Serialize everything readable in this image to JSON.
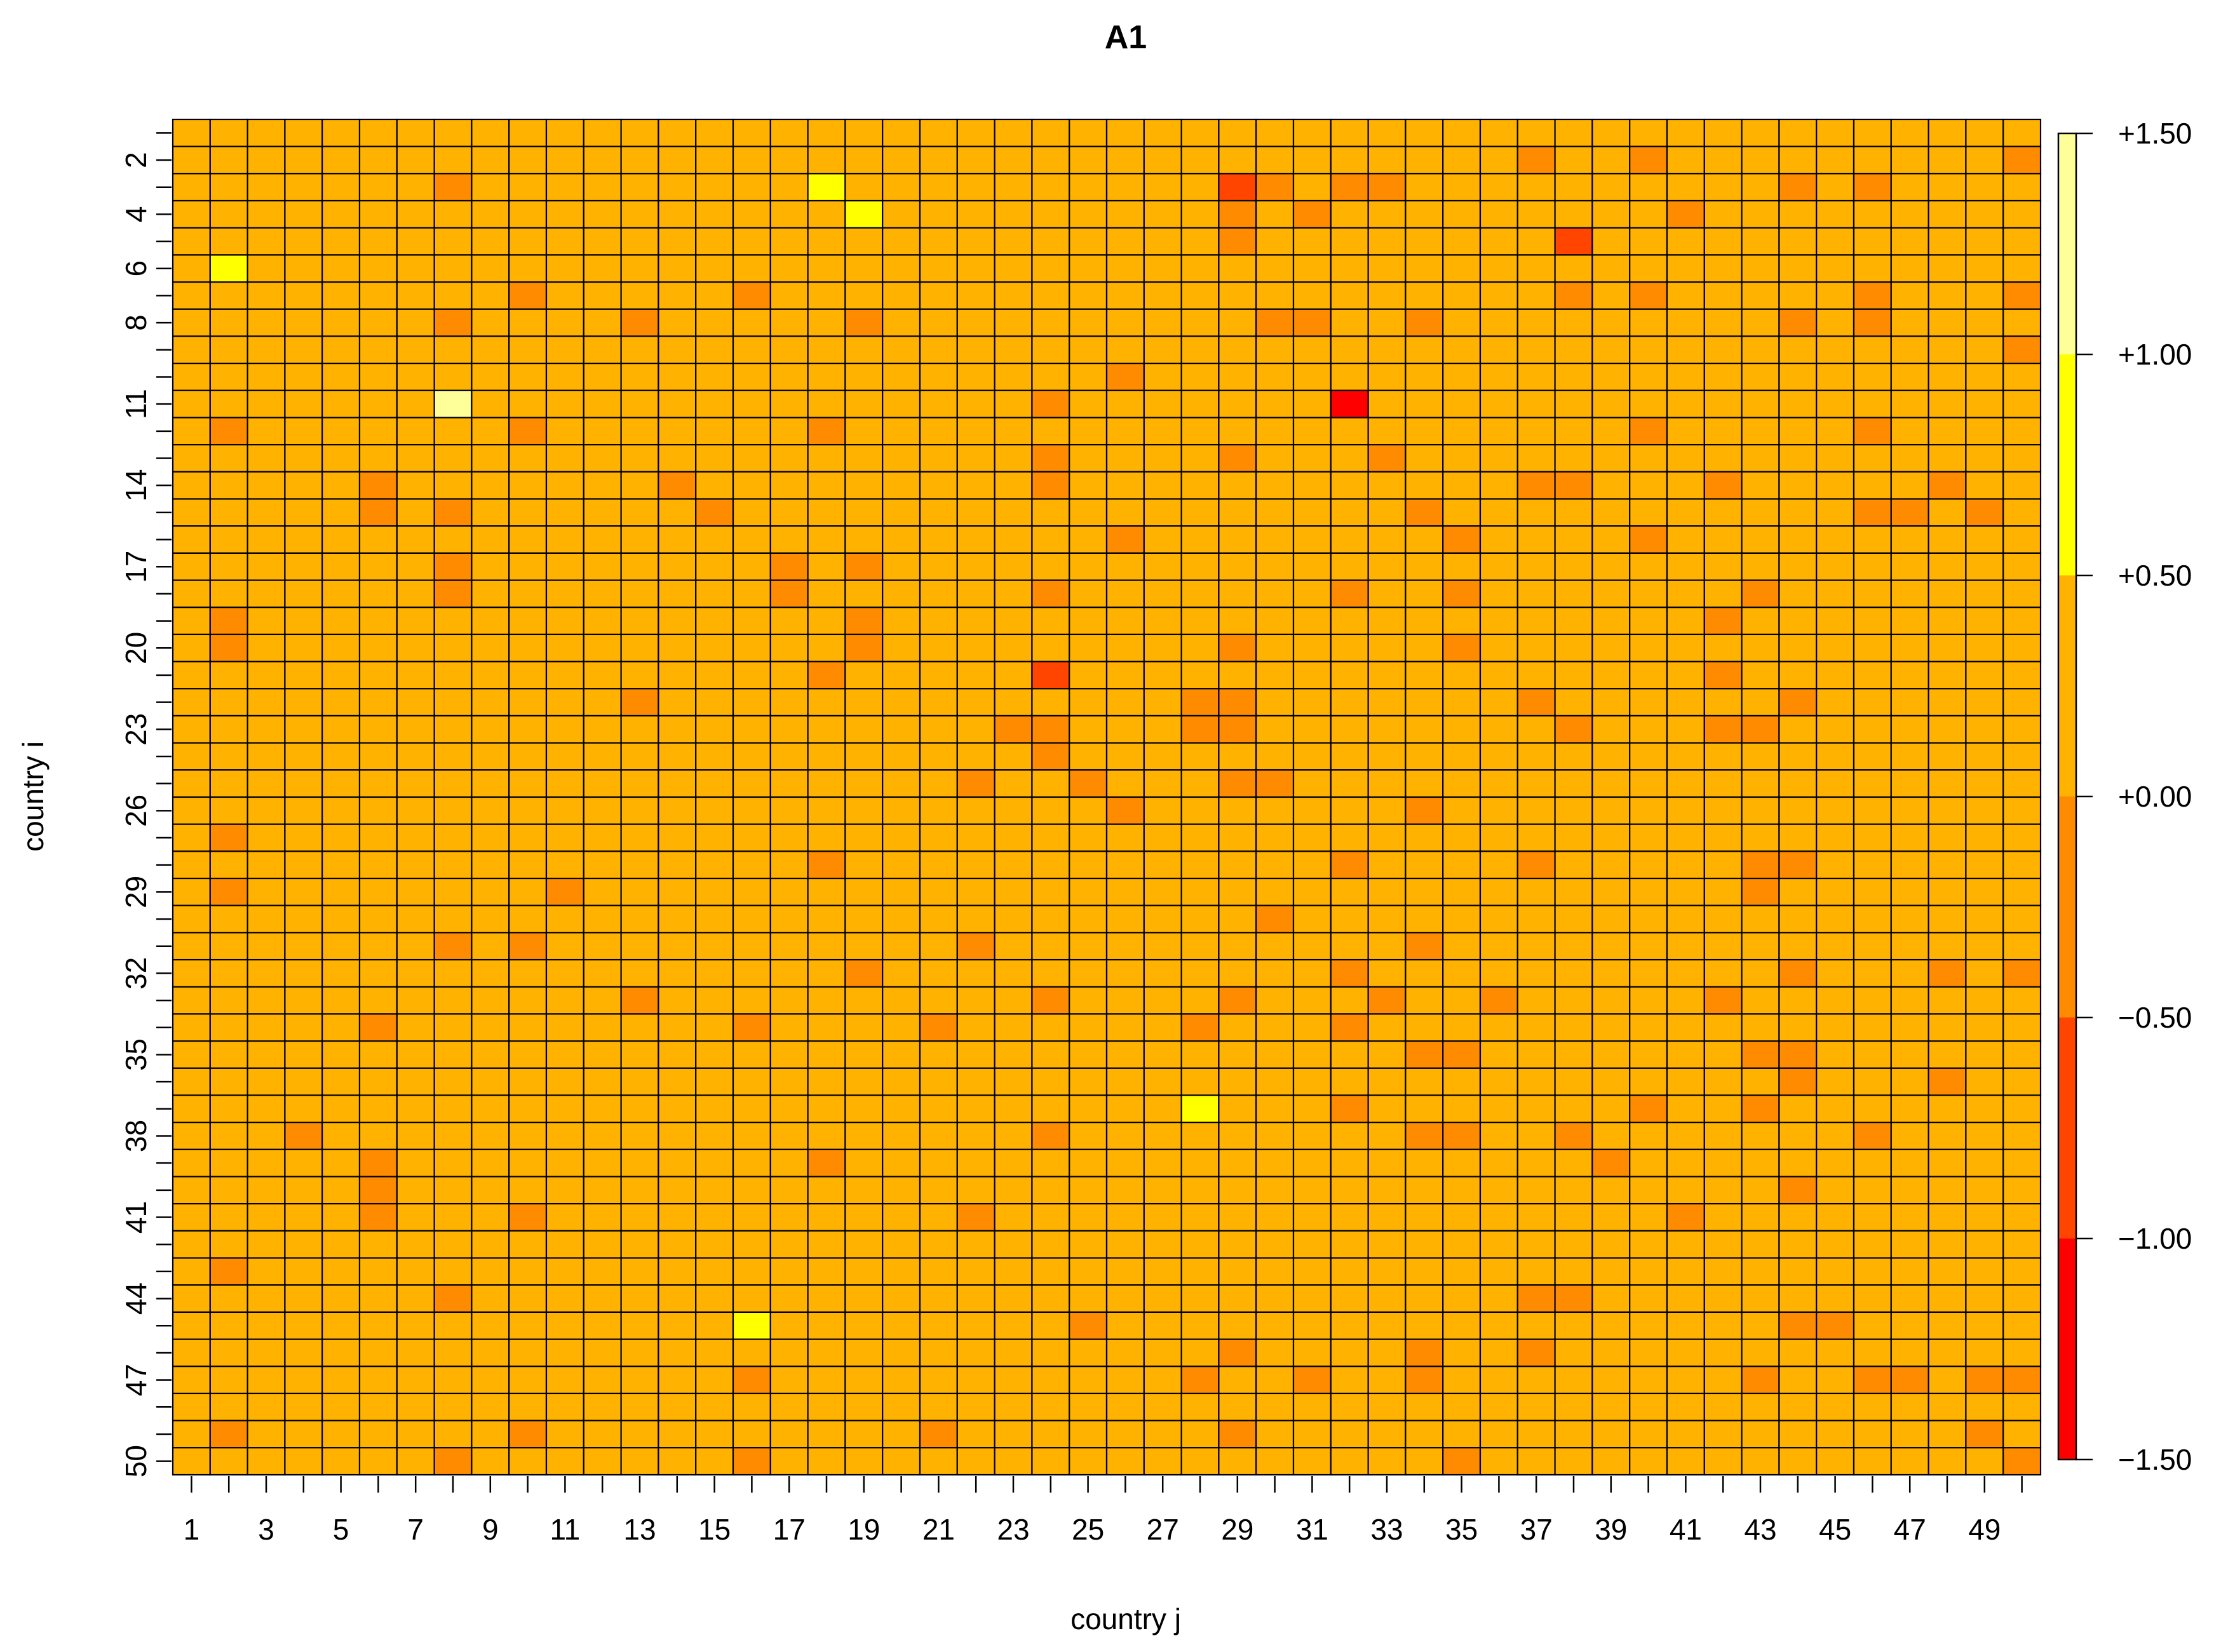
{
  "chart_data": {
    "type": "heatmap",
    "title": "A1",
    "xlabel": "country j",
    "ylabel": "country i",
    "n_cols": 50,
    "n_rows": 50,
    "x_tick_labels": [
      "1",
      "3",
      "5",
      "7",
      "9",
      "11",
      "13",
      "15",
      "17",
      "19",
      "21",
      "23",
      "25",
      "27",
      "29",
      "31",
      "33",
      "35",
      "37",
      "39",
      "41",
      "43",
      "45",
      "47",
      "49"
    ],
    "y_tick_labels": [
      "2",
      "4",
      "6",
      "8",
      "11",
      "14",
      "17",
      "20",
      "23",
      "26",
      "29",
      "32",
      "35",
      "38",
      "41",
      "44",
      "47",
      "50"
    ],
    "colorbar": {
      "range": [
        -1.5,
        1.5
      ],
      "breaks": [
        -1.5,
        -1.0,
        -0.5,
        0.0,
        0.5,
        1.0,
        1.5
      ],
      "tick_labels": [
        "−1.50",
        "−1.00",
        "−0.50",
        "+0.00",
        "+0.50",
        "+1.00",
        "+1.50"
      ],
      "colors": [
        "#FF0000",
        "#FF4500",
        "#FF8C00",
        "#FFB300",
        "#FFFF00",
        "#FFFF99"
      ]
    },
    "default_value": 0.25,
    "cells": [
      {
        "i": 2,
        "j": 37,
        "v": -0.25
      },
      {
        "i": 2,
        "j": 40,
        "v": -0.25
      },
      {
        "i": 2,
        "j": 50,
        "v": -0.25
      },
      {
        "i": 3,
        "j": 8,
        "v": -0.25
      },
      {
        "i": 3,
        "j": 18,
        "v": 0.75
      },
      {
        "i": 3,
        "j": 29,
        "v": -0.75
      },
      {
        "i": 3,
        "j": 30,
        "v": -0.25
      },
      {
        "i": 3,
        "j": 32,
        "v": -0.25
      },
      {
        "i": 3,
        "j": 33,
        "v": -0.25
      },
      {
        "i": 3,
        "j": 44,
        "v": -0.25
      },
      {
        "i": 3,
        "j": 46,
        "v": -0.25
      },
      {
        "i": 4,
        "j": 19,
        "v": 0.75
      },
      {
        "i": 4,
        "j": 29,
        "v": -0.25
      },
      {
        "i": 4,
        "j": 31,
        "v": -0.25
      },
      {
        "i": 4,
        "j": 41,
        "v": -0.25
      },
      {
        "i": 5,
        "j": 29,
        "v": -0.25
      },
      {
        "i": 5,
        "j": 38,
        "v": -0.75
      },
      {
        "i": 6,
        "j": 2,
        "v": 0.75
      },
      {
        "i": 7,
        "j": 10,
        "v": -0.25
      },
      {
        "i": 7,
        "j": 16,
        "v": -0.25
      },
      {
        "i": 7,
        "j": 38,
        "v": -0.25
      },
      {
        "i": 7,
        "j": 40,
        "v": -0.25
      },
      {
        "i": 7,
        "j": 46,
        "v": -0.25
      },
      {
        "i": 7,
        "j": 50,
        "v": -0.25
      },
      {
        "i": 8,
        "j": 8,
        "v": -0.25
      },
      {
        "i": 8,
        "j": 13,
        "v": -0.25
      },
      {
        "i": 8,
        "j": 19,
        "v": -0.25
      },
      {
        "i": 8,
        "j": 30,
        "v": -0.25
      },
      {
        "i": 8,
        "j": 31,
        "v": -0.25
      },
      {
        "i": 8,
        "j": 34,
        "v": -0.25
      },
      {
        "i": 8,
        "j": 44,
        "v": -0.25
      },
      {
        "i": 8,
        "j": 46,
        "v": -0.25
      },
      {
        "i": 9,
        "j": 50,
        "v": -0.25
      },
      {
        "i": 10,
        "j": 26,
        "v": -0.25
      },
      {
        "i": 11,
        "j": 8,
        "v": 1.25
      },
      {
        "i": 11,
        "j": 24,
        "v": -0.25
      },
      {
        "i": 11,
        "j": 32,
        "v": -1.25
      },
      {
        "i": 12,
        "j": 2,
        "v": -0.25
      },
      {
        "i": 12,
        "j": 10,
        "v": -0.25
      },
      {
        "i": 12,
        "j": 18,
        "v": -0.25
      },
      {
        "i": 12,
        "j": 40,
        "v": -0.25
      },
      {
        "i": 12,
        "j": 46,
        "v": -0.25
      },
      {
        "i": 13,
        "j": 24,
        "v": -0.25
      },
      {
        "i": 13,
        "j": 29,
        "v": -0.25
      },
      {
        "i": 13,
        "j": 33,
        "v": -0.25
      },
      {
        "i": 14,
        "j": 6,
        "v": -0.25
      },
      {
        "i": 14,
        "j": 14,
        "v": -0.25
      },
      {
        "i": 14,
        "j": 24,
        "v": -0.25
      },
      {
        "i": 14,
        "j": 37,
        "v": -0.25
      },
      {
        "i": 14,
        "j": 38,
        "v": -0.25
      },
      {
        "i": 14,
        "j": 42,
        "v": -0.25
      },
      {
        "i": 14,
        "j": 48,
        "v": -0.25
      },
      {
        "i": 15,
        "j": 6,
        "v": -0.25
      },
      {
        "i": 15,
        "j": 8,
        "v": -0.25
      },
      {
        "i": 15,
        "j": 15,
        "v": -0.25
      },
      {
        "i": 15,
        "j": 34,
        "v": -0.25
      },
      {
        "i": 15,
        "j": 46,
        "v": -0.25
      },
      {
        "i": 15,
        "j": 47,
        "v": -0.25
      },
      {
        "i": 15,
        "j": 49,
        "v": -0.25
      },
      {
        "i": 16,
        "j": 26,
        "v": -0.25
      },
      {
        "i": 16,
        "j": 35,
        "v": -0.25
      },
      {
        "i": 16,
        "j": 40,
        "v": -0.25
      },
      {
        "i": 17,
        "j": 8,
        "v": -0.25
      },
      {
        "i": 17,
        "j": 17,
        "v": -0.25
      },
      {
        "i": 17,
        "j": 19,
        "v": -0.25
      },
      {
        "i": 18,
        "j": 8,
        "v": -0.25
      },
      {
        "i": 18,
        "j": 17,
        "v": -0.25
      },
      {
        "i": 18,
        "j": 24,
        "v": -0.25
      },
      {
        "i": 18,
        "j": 32,
        "v": -0.25
      },
      {
        "i": 18,
        "j": 35,
        "v": -0.25
      },
      {
        "i": 18,
        "j": 43,
        "v": -0.25
      },
      {
        "i": 19,
        "j": 2,
        "v": -0.25
      },
      {
        "i": 19,
        "j": 19,
        "v": -0.25
      },
      {
        "i": 19,
        "j": 42,
        "v": -0.25
      },
      {
        "i": 20,
        "j": 2,
        "v": -0.25
      },
      {
        "i": 20,
        "j": 19,
        "v": -0.25
      },
      {
        "i": 20,
        "j": 29,
        "v": -0.25
      },
      {
        "i": 20,
        "j": 35,
        "v": -0.25
      },
      {
        "i": 21,
        "j": 18,
        "v": -0.25
      },
      {
        "i": 21,
        "j": 24,
        "v": -0.75
      },
      {
        "i": 21,
        "j": 42,
        "v": -0.25
      },
      {
        "i": 22,
        "j": 13,
        "v": -0.25
      },
      {
        "i": 22,
        "j": 28,
        "v": -0.25
      },
      {
        "i": 22,
        "j": 29,
        "v": -0.25
      },
      {
        "i": 22,
        "j": 37,
        "v": -0.25
      },
      {
        "i": 22,
        "j": 44,
        "v": -0.25
      },
      {
        "i": 23,
        "j": 23,
        "v": -0.25
      },
      {
        "i": 23,
        "j": 24,
        "v": -0.25
      },
      {
        "i": 23,
        "j": 28,
        "v": -0.25
      },
      {
        "i": 23,
        "j": 29,
        "v": -0.25
      },
      {
        "i": 23,
        "j": 38,
        "v": -0.25
      },
      {
        "i": 23,
        "j": 42,
        "v": -0.25
      },
      {
        "i": 23,
        "j": 43,
        "v": -0.25
      },
      {
        "i": 24,
        "j": 24,
        "v": -0.25
      },
      {
        "i": 25,
        "j": 22,
        "v": -0.25
      },
      {
        "i": 25,
        "j": 25,
        "v": -0.25
      },
      {
        "i": 25,
        "j": 29,
        "v": -0.25
      },
      {
        "i": 25,
        "j": 30,
        "v": -0.25
      },
      {
        "i": 26,
        "j": 26,
        "v": -0.25
      },
      {
        "i": 26,
        "j": 34,
        "v": -0.25
      },
      {
        "i": 27,
        "j": 2,
        "v": -0.25
      },
      {
        "i": 28,
        "j": 18,
        "v": -0.25
      },
      {
        "i": 28,
        "j": 32,
        "v": -0.25
      },
      {
        "i": 28,
        "j": 37,
        "v": -0.25
      },
      {
        "i": 28,
        "j": 43,
        "v": -0.25
      },
      {
        "i": 28,
        "j": 44,
        "v": -0.25
      },
      {
        "i": 29,
        "j": 2,
        "v": -0.25
      },
      {
        "i": 29,
        "j": 11,
        "v": -0.25
      },
      {
        "i": 29,
        "j": 43,
        "v": -0.25
      },
      {
        "i": 30,
        "j": 30,
        "v": -0.25
      },
      {
        "i": 31,
        "j": 8,
        "v": -0.25
      },
      {
        "i": 31,
        "j": 10,
        "v": -0.25
      },
      {
        "i": 31,
        "j": 22,
        "v": -0.25
      },
      {
        "i": 31,
        "j": 34,
        "v": -0.25
      },
      {
        "i": 32,
        "j": 19,
        "v": -0.25
      },
      {
        "i": 32,
        "j": 32,
        "v": -0.25
      },
      {
        "i": 32,
        "j": 44,
        "v": -0.25
      },
      {
        "i": 32,
        "j": 48,
        "v": -0.25
      },
      {
        "i": 32,
        "j": 50,
        "v": -0.25
      },
      {
        "i": 33,
        "j": 13,
        "v": -0.25
      },
      {
        "i": 33,
        "j": 24,
        "v": -0.25
      },
      {
        "i": 33,
        "j": 29,
        "v": -0.25
      },
      {
        "i": 33,
        "j": 33,
        "v": -0.25
      },
      {
        "i": 33,
        "j": 36,
        "v": -0.25
      },
      {
        "i": 33,
        "j": 42,
        "v": -0.25
      },
      {
        "i": 34,
        "j": 6,
        "v": -0.25
      },
      {
        "i": 34,
        "j": 16,
        "v": -0.25
      },
      {
        "i": 34,
        "j": 21,
        "v": -0.25
      },
      {
        "i": 34,
        "j": 28,
        "v": -0.25
      },
      {
        "i": 34,
        "j": 32,
        "v": -0.25
      },
      {
        "i": 35,
        "j": 34,
        "v": -0.25
      },
      {
        "i": 35,
        "j": 35,
        "v": -0.25
      },
      {
        "i": 35,
        "j": 43,
        "v": -0.25
      },
      {
        "i": 35,
        "j": 44,
        "v": -0.25
      },
      {
        "i": 36,
        "j": 44,
        "v": -0.25
      },
      {
        "i": 36,
        "j": 48,
        "v": -0.25
      },
      {
        "i": 37,
        "j": 28,
        "v": 0.75
      },
      {
        "i": 37,
        "j": 32,
        "v": -0.25
      },
      {
        "i": 37,
        "j": 40,
        "v": -0.25
      },
      {
        "i": 37,
        "j": 43,
        "v": -0.25
      },
      {
        "i": 38,
        "j": 4,
        "v": -0.25
      },
      {
        "i": 38,
        "j": 24,
        "v": -0.25
      },
      {
        "i": 38,
        "j": 34,
        "v": -0.25
      },
      {
        "i": 38,
        "j": 35,
        "v": -0.25
      },
      {
        "i": 38,
        "j": 38,
        "v": -0.25
      },
      {
        "i": 38,
        "j": 46,
        "v": -0.25
      },
      {
        "i": 39,
        "j": 6,
        "v": -0.25
      },
      {
        "i": 39,
        "j": 18,
        "v": -0.25
      },
      {
        "i": 39,
        "j": 39,
        "v": -0.25
      },
      {
        "i": 40,
        "j": 6,
        "v": -0.25
      },
      {
        "i": 40,
        "j": 44,
        "v": -0.25
      },
      {
        "i": 41,
        "j": 6,
        "v": -0.25
      },
      {
        "i": 41,
        "j": 10,
        "v": -0.25
      },
      {
        "i": 41,
        "j": 22,
        "v": -0.25
      },
      {
        "i": 41,
        "j": 41,
        "v": -0.25
      },
      {
        "i": 43,
        "j": 2,
        "v": -0.25
      },
      {
        "i": 44,
        "j": 8,
        "v": -0.25
      },
      {
        "i": 44,
        "j": 37,
        "v": -0.25
      },
      {
        "i": 44,
        "j": 38,
        "v": -0.25
      },
      {
        "i": 45,
        "j": 16,
        "v": 0.75
      },
      {
        "i": 45,
        "j": 25,
        "v": -0.25
      },
      {
        "i": 45,
        "j": 44,
        "v": -0.25
      },
      {
        "i": 45,
        "j": 45,
        "v": -0.25
      },
      {
        "i": 46,
        "j": 29,
        "v": -0.25
      },
      {
        "i": 46,
        "j": 34,
        "v": -0.25
      },
      {
        "i": 46,
        "j": 37,
        "v": -0.25
      },
      {
        "i": 47,
        "j": 16,
        "v": -0.25
      },
      {
        "i": 47,
        "j": 28,
        "v": -0.25
      },
      {
        "i": 47,
        "j": 31,
        "v": -0.25
      },
      {
        "i": 47,
        "j": 34,
        "v": -0.25
      },
      {
        "i": 47,
        "j": 43,
        "v": -0.25
      },
      {
        "i": 47,
        "j": 46,
        "v": -0.25
      },
      {
        "i": 47,
        "j": 47,
        "v": -0.25
      },
      {
        "i": 47,
        "j": 49,
        "v": -0.25
      },
      {
        "i": 47,
        "j": 50,
        "v": -0.25
      },
      {
        "i": 49,
        "j": 2,
        "v": -0.25
      },
      {
        "i": 49,
        "j": 10,
        "v": -0.25
      },
      {
        "i": 49,
        "j": 21,
        "v": -0.25
      },
      {
        "i": 49,
        "j": 29,
        "v": -0.25
      },
      {
        "i": 49,
        "j": 49,
        "v": -0.25
      },
      {
        "i": 50,
        "j": 8,
        "v": -0.25
      },
      {
        "i": 50,
        "j": 16,
        "v": -0.25
      },
      {
        "i": 50,
        "j": 35,
        "v": -0.25
      },
      {
        "i": 50,
        "j": 50,
        "v": -0.25
      }
    ]
  }
}
